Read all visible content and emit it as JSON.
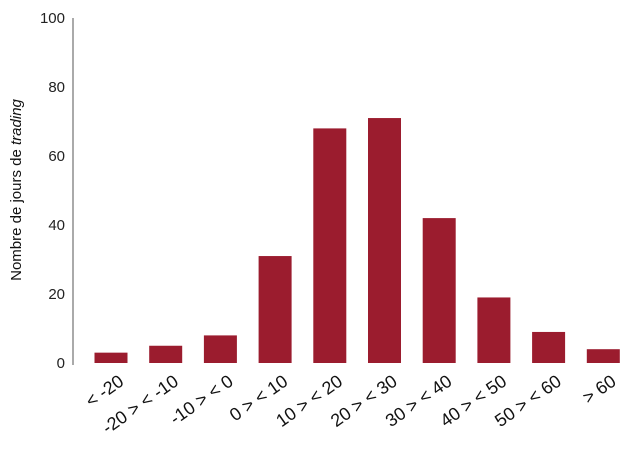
{
  "chart_data": {
    "type": "bar",
    "title": "",
    "xlabel": "",
    "ylabel": {
      "prefix": "Nombre de jours de ",
      "emphasis": "trading"
    },
    "ylim": [
      0,
      100
    ],
    "yticks": [
      "0",
      "20",
      "40",
      "60",
      "80",
      "100"
    ],
    "categories": [
      "< -20",
      "-20 > < -10",
      "-10 > < 0",
      "0 > < 10",
      "10 > < 20",
      "20 > < 30",
      "30 > < 40",
      "40 > < 50",
      "50 > < 60",
      "> 60"
    ],
    "values": [
      3,
      5,
      8,
      31,
      68,
      71,
      42,
      19,
      9,
      4
    ],
    "bar_color": "#9b1c2e",
    "grid": false,
    "legend": "none"
  }
}
